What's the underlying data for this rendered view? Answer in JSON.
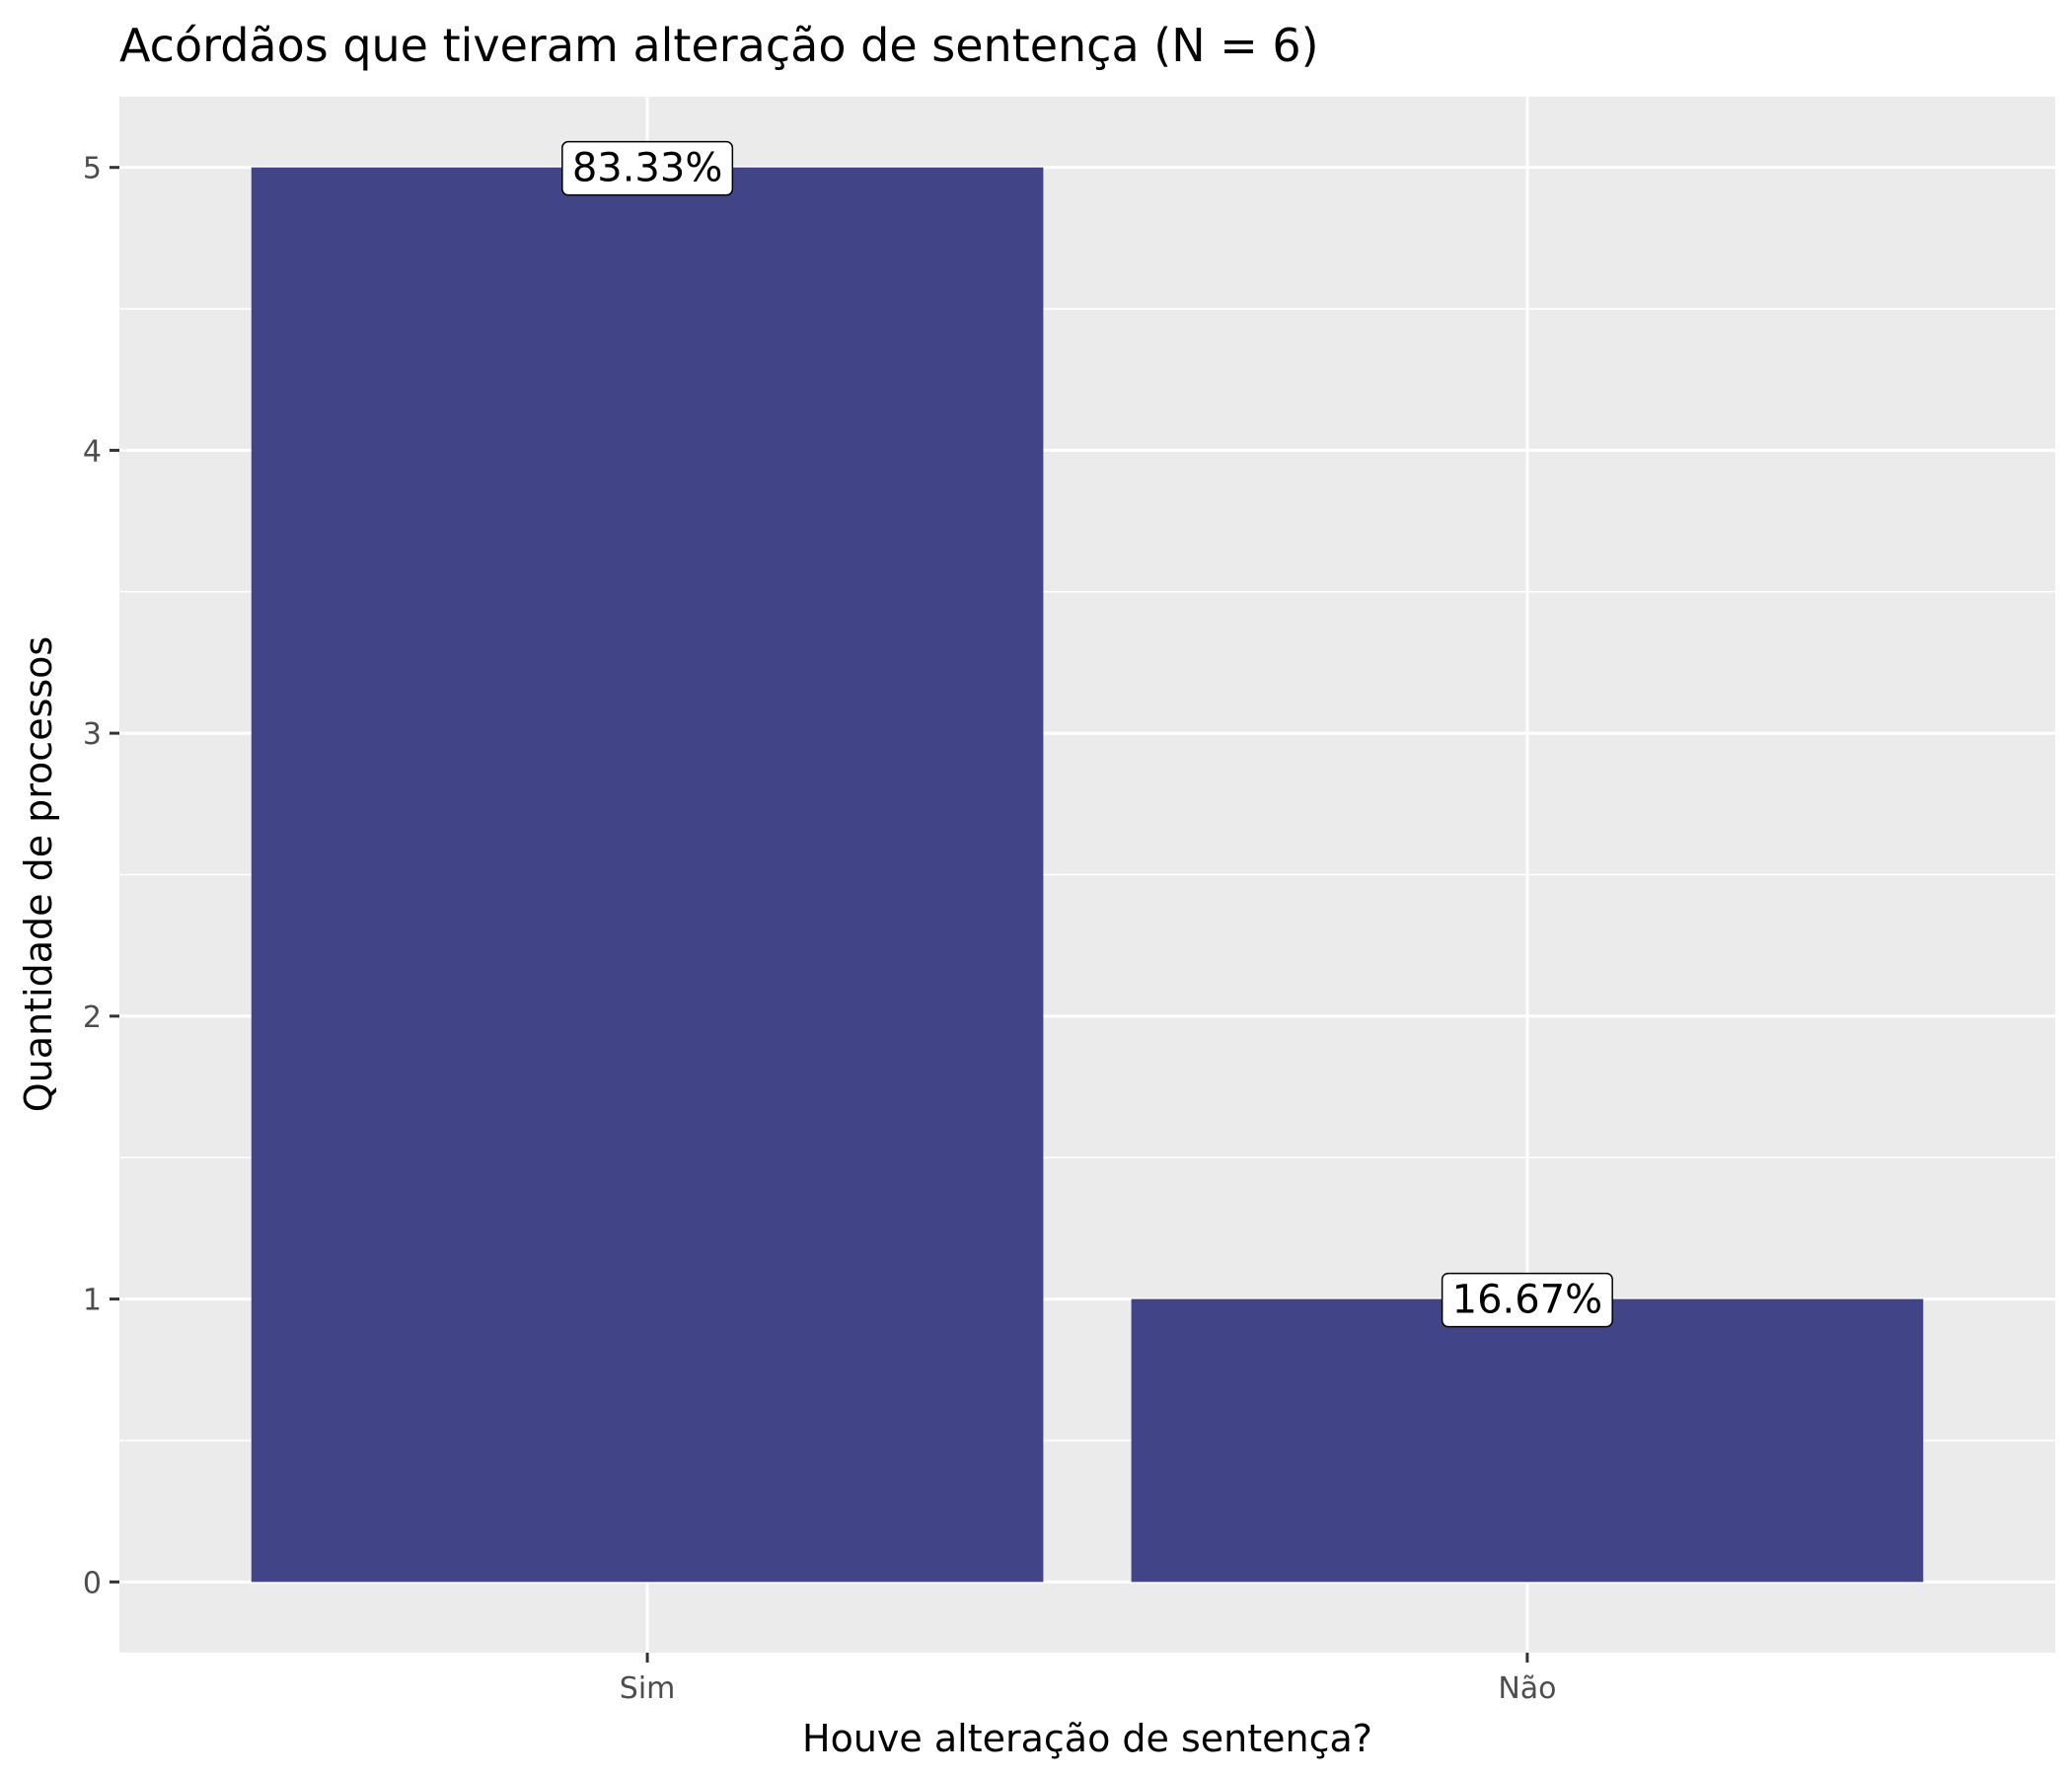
{
  "chart_data": {
    "type": "bar",
    "title": "Acórdãos que tiveram alteração de sentença (N = 6)",
    "xlabel": "Houve alteração de sentença?",
    "ylabel": "Quantidade de processos",
    "categories": [
      "Sim",
      "Não"
    ],
    "values": [
      5,
      1
    ],
    "data_labels": [
      "83.33%",
      "16.67%"
    ],
    "y_ticks": [
      0,
      1,
      2,
      3,
      4,
      5
    ],
    "ylim": [
      -0.25,
      5.25
    ],
    "grid": true,
    "legend": "none",
    "colors": {
      "bar": "#414487",
      "panel_background": "#ebebeb",
      "gridline": "#ffffff"
    }
  }
}
